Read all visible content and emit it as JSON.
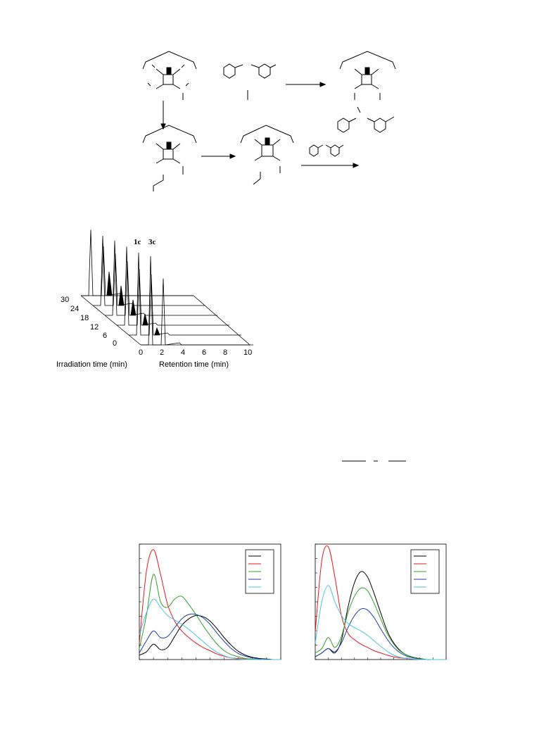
{
  "scheme": {
    "note": ""
  },
  "chromatogram": {
    "peak_labels": [
      "1c",
      "3c"
    ],
    "z_ticks": [
      "30",
      "24",
      "18",
      "12",
      "6",
      "0"
    ],
    "x_ticks": [
      "0",
      "2",
      "4",
      "6",
      "8",
      "10"
    ],
    "z_label": "Irradiation time (min)",
    "x_label": "Retention time (min)"
  },
  "chart_data": [
    {
      "type": "line",
      "title": "",
      "xlabel": "",
      "ylabel": "",
      "x": [
        0,
        1,
        2,
        3,
        4,
        5,
        6,
        7,
        8,
        9,
        10,
        11,
        12,
        13,
        14,
        15,
        16,
        17,
        18,
        19,
        20
      ],
      "series": [
        {
          "color": "#000000",
          "values": [
            0.08,
            0.14,
            0.28,
            0.18,
            0.22,
            0.42,
            0.62,
            0.74,
            0.8,
            0.78,
            0.7,
            0.56,
            0.4,
            0.26,
            0.15,
            0.08,
            0.04,
            0.02,
            0.01,
            0.0,
            0.0
          ]
        },
        {
          "color": "#e41a1c",
          "values": [
            0.3,
            1.6,
            2.0,
            1.55,
            1.0,
            0.7,
            0.52,
            0.4,
            0.3,
            0.22,
            0.16,
            0.1,
            0.06,
            0.03,
            0.02,
            0.01,
            0.0,
            0.0,
            0.0,
            0.0,
            0.0
          ]
        },
        {
          "color": "#33a02c",
          "values": [
            0.2,
            0.8,
            1.55,
            1.05,
            0.95,
            1.1,
            1.15,
            1.0,
            0.82,
            0.62,
            0.44,
            0.28,
            0.16,
            0.09,
            0.05,
            0.02,
            0.01,
            0.0,
            0.0,
            0.0,
            0.0
          ]
        },
        {
          "color": "#1f3fa8",
          "values": [
            0.12,
            0.34,
            0.52,
            0.4,
            0.42,
            0.58,
            0.74,
            0.82,
            0.82,
            0.76,
            0.64,
            0.48,
            0.33,
            0.2,
            0.11,
            0.06,
            0.03,
            0.01,
            0.0,
            0.0,
            0.0
          ]
        },
        {
          "color": "#4ec3e0",
          "values": [
            0.45,
            0.85,
            1.1,
            0.95,
            0.8,
            0.72,
            0.64,
            0.55,
            0.44,
            0.33,
            0.22,
            0.13,
            0.07,
            0.03,
            0.01,
            0.0,
            0.0,
            0.0,
            0.0,
            0.0,
            0.0
          ]
        }
      ],
      "ylim": [
        0,
        2.1
      ],
      "xlim": [
        0,
        20
      ],
      "grid": false,
      "legend": "top-right"
    },
    {
      "type": "line",
      "title": "",
      "xlabel": "",
      "ylabel": "",
      "x": [
        0,
        1,
        2,
        3,
        4,
        5,
        6,
        7,
        8,
        9,
        10,
        11,
        12,
        13,
        14,
        15,
        16,
        17,
        18,
        19,
        20
      ],
      "series": [
        {
          "color": "#000000",
          "values": [
            0.05,
            0.12,
            0.2,
            0.12,
            0.35,
            0.95,
            1.4,
            1.6,
            1.5,
            1.2,
            0.85,
            0.52,
            0.3,
            0.16,
            0.08,
            0.04,
            0.02,
            0.0,
            0.0,
            0.0,
            0.0
          ]
        },
        {
          "color": "#e41a1c",
          "values": [
            0.5,
            1.8,
            2.05,
            1.5,
            0.8,
            0.48,
            0.36,
            0.28,
            0.22,
            0.16,
            0.12,
            0.08,
            0.05,
            0.03,
            0.02,
            0.01,
            0.0,
            0.0,
            0.0,
            0.0,
            0.0
          ]
        },
        {
          "color": "#33a02c",
          "values": [
            0.12,
            0.2,
            0.4,
            0.22,
            0.42,
            0.85,
            1.15,
            1.3,
            1.25,
            1.02,
            0.74,
            0.47,
            0.28,
            0.15,
            0.08,
            0.04,
            0.02,
            0.0,
            0.0,
            0.0,
            0.0
          ]
        },
        {
          "color": "#1f3fa8",
          "values": [
            0.05,
            0.12,
            0.2,
            0.14,
            0.3,
            0.58,
            0.8,
            0.92,
            0.9,
            0.76,
            0.56,
            0.37,
            0.22,
            0.12,
            0.06,
            0.03,
            0.01,
            0.0,
            0.0,
            0.0,
            0.0
          ]
        },
        {
          "color": "#4ec3e0",
          "values": [
            0.3,
            1.05,
            1.35,
            1.05,
            0.8,
            0.66,
            0.58,
            0.52,
            0.44,
            0.34,
            0.24,
            0.15,
            0.08,
            0.04,
            0.02,
            0.01,
            0.0,
            0.0,
            0.0,
            0.0,
            0.0
          ]
        }
      ],
      "ylim": [
        0,
        2.1
      ],
      "xlim": [
        0,
        20
      ],
      "grid": false,
      "legend": "top-right"
    }
  ]
}
